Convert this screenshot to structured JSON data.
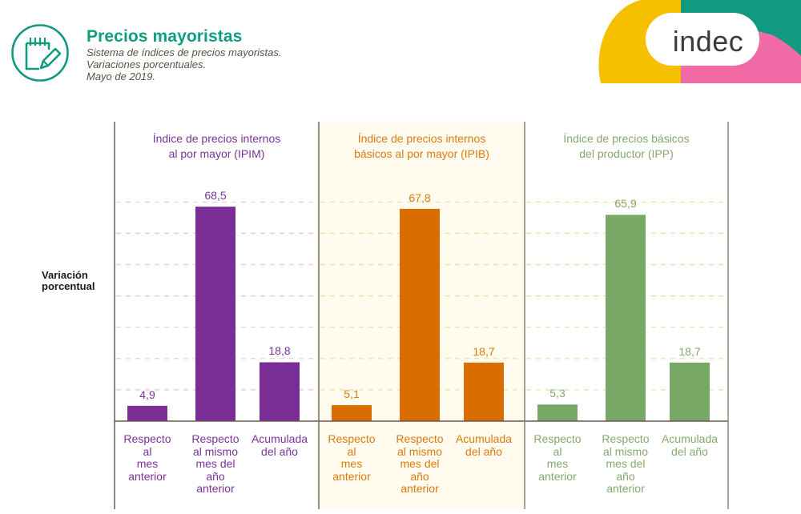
{
  "header": {
    "title": "Precios mayoristas",
    "subtitle_lines": [
      "Sistema de índices de precios mayoristas.",
      "Variaciones porcentuales.",
      "Mayo de 2019."
    ],
    "icon": "notepad-pencil-icon",
    "brand": "indec",
    "colors": {
      "title": "#0f9e7e",
      "brand_yellow": "#f6c000",
      "brand_teal": "#119a80",
      "brand_pink": "#f06aa6"
    }
  },
  "chart_data": {
    "type": "bar",
    "ylabel": "Variación porcentual",
    "xlabel": "",
    "ylim": [
      0,
      80
    ],
    "grid": true,
    "grid_step": 10,
    "categories": [
      "Respecto al mes anterior",
      "Respecto al mismo mes del año anterior",
      "Acumulada del año"
    ],
    "category_lines": [
      [
        "Respecto",
        "al",
        "mes",
        "anterior"
      ],
      [
        "Respecto",
        "al mismo",
        "mes del",
        "año",
        "anterior"
      ],
      [
        "Acumulada",
        "del año"
      ]
    ],
    "series": [
      {
        "name": "Índice de precios internos al por mayor (IPIM)",
        "title_lines": [
          "Índice de precios internos",
          "al por mayor (IPIM)"
        ],
        "color": "#7b2d96",
        "text_color": "#7b3296",
        "values": [
          4.9,
          68.5,
          18.8
        ],
        "labels": [
          "4,9",
          "68,5",
          "18,8"
        ]
      },
      {
        "name": "Índice de precios internos básicos al por mayor (IPIB)",
        "title_lines": [
          "Índice de precios internos",
          "básicos al por mayor (IPIB)"
        ],
        "color": "#d96d00",
        "text_color": "#d97a0a",
        "background": "#fffcef",
        "values": [
          5.1,
          67.8,
          18.7
        ],
        "labels": [
          "5,1",
          "67,8",
          "18,7"
        ]
      },
      {
        "name": "Índice de precios básicos del productor (IPP)",
        "title_lines": [
          "Índice de precios básicos",
          "del productor (IPP)"
        ],
        "color": "#78a865",
        "text_color": "#86a86c",
        "values": [
          5.3,
          65.9,
          18.7
        ],
        "labels": [
          "5,3",
          "65,9",
          "18,7"
        ]
      }
    ]
  }
}
